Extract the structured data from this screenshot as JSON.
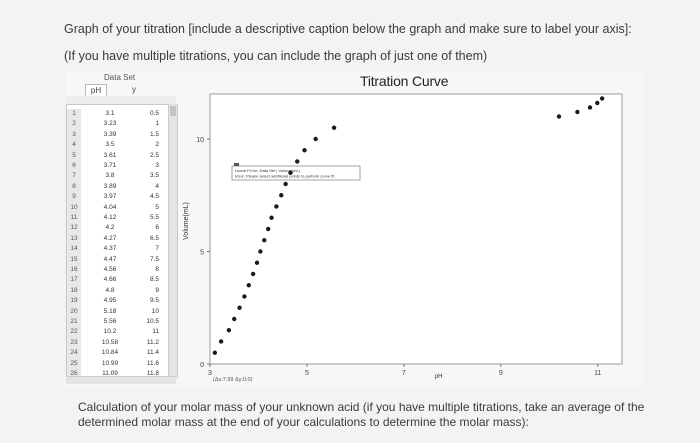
{
  "prompts": {
    "line1": "Graph of your titration [include a descriptive caption below the graph and make sure to label your axis]:",
    "line2": "(If you have multiple titrations, you can include the graph of just one of them)",
    "caption": "Calculation of your molar mass of your unknown acid (if you have multiple titrations, take an average of the determined molar mass at the end of your calculations to determine the molar mass):"
  },
  "data_set": {
    "title": "Data Set",
    "col1": "pH",
    "col2": "y",
    "rows": [
      {
        "i": "1",
        "ph": "3.1",
        "y": "0.5"
      },
      {
        "i": "2",
        "ph": "3.23",
        "y": "1"
      },
      {
        "i": "3",
        "ph": "3.39",
        "y": "1.5"
      },
      {
        "i": "4",
        "ph": "3.5",
        "y": "2"
      },
      {
        "i": "5",
        "ph": "3.61",
        "y": "2.5"
      },
      {
        "i": "6",
        "ph": "3.71",
        "y": "3"
      },
      {
        "i": "7",
        "ph": "3.8",
        "y": "3.5"
      },
      {
        "i": "8",
        "ph": "3.89",
        "y": "4"
      },
      {
        "i": "9",
        "ph": "3.97",
        "y": "4.5"
      },
      {
        "i": "10",
        "ph": "4.04",
        "y": "5"
      },
      {
        "i": "11",
        "ph": "4.12",
        "y": "5.5"
      },
      {
        "i": "12",
        "ph": "4.2",
        "y": "6"
      },
      {
        "i": "13",
        "ph": "4.27",
        "y": "6.5"
      },
      {
        "i": "14",
        "ph": "4.37",
        "y": "7"
      },
      {
        "i": "15",
        "ph": "4.47",
        "y": "7.5"
      },
      {
        "i": "16",
        "ph": "4.56",
        "y": "8"
      },
      {
        "i": "17",
        "ph": "4.66",
        "y": "8.5"
      },
      {
        "i": "18",
        "ph": "4.8",
        "y": "9"
      },
      {
        "i": "19",
        "ph": "4.95",
        "y": "9.5"
      },
      {
        "i": "20",
        "ph": "5.18",
        "y": "10"
      },
      {
        "i": "21",
        "ph": "5.56",
        "y": "10.5"
      },
      {
        "i": "22",
        "ph": "10.2",
        "y": "11"
      },
      {
        "i": "23",
        "ph": "10.58",
        "y": "11.2"
      },
      {
        "i": "24",
        "ph": "10.84",
        "y": "11.4"
      },
      {
        "i": "25",
        "ph": "10.99",
        "y": "11.6"
      },
      {
        "i": "26",
        "ph": "11.09",
        "y": "11.8"
      }
    ]
  },
  "chart_data": {
    "type": "scatter",
    "title": "Titration Curve",
    "xlabel": "pH",
    "ylabel": "Volume(mL)",
    "xlim": [
      3,
      11.5
    ],
    "ylim": [
      0,
      12
    ],
    "x_ticks": [
      "3",
      "5",
      "7",
      "9",
      "11"
    ],
    "y_ticks": [
      "0",
      "5",
      "10"
    ],
    "x": [
      3.1,
      3.23,
      3.39,
      3.5,
      3.61,
      3.71,
      3.8,
      3.89,
      3.97,
      4.04,
      4.12,
      4.2,
      4.27,
      4.37,
      4.47,
      4.56,
      4.66,
      4.8,
      4.95,
      5.18,
      5.56,
      10.2,
      10.58,
      10.84,
      10.99,
      11.09
    ],
    "y": [
      0.5,
      1,
      1.5,
      2,
      2.5,
      3,
      3.5,
      4,
      4.5,
      5,
      5.5,
      6,
      6.5,
      7,
      7.5,
      8,
      8.5,
      9,
      9.5,
      10,
      10.5,
      11,
      11.2,
      11.4,
      11.6,
      11.8
    ],
    "point_color": "#1a1a1a",
    "fit_box": {
      "line1": "Linear Fit for: Data Set | Volume(mL)",
      "line2": "Error: Please select additional points to perform curve fit."
    },
    "coord_readout": "(Δx:7.99 Δy:0.0)"
  }
}
